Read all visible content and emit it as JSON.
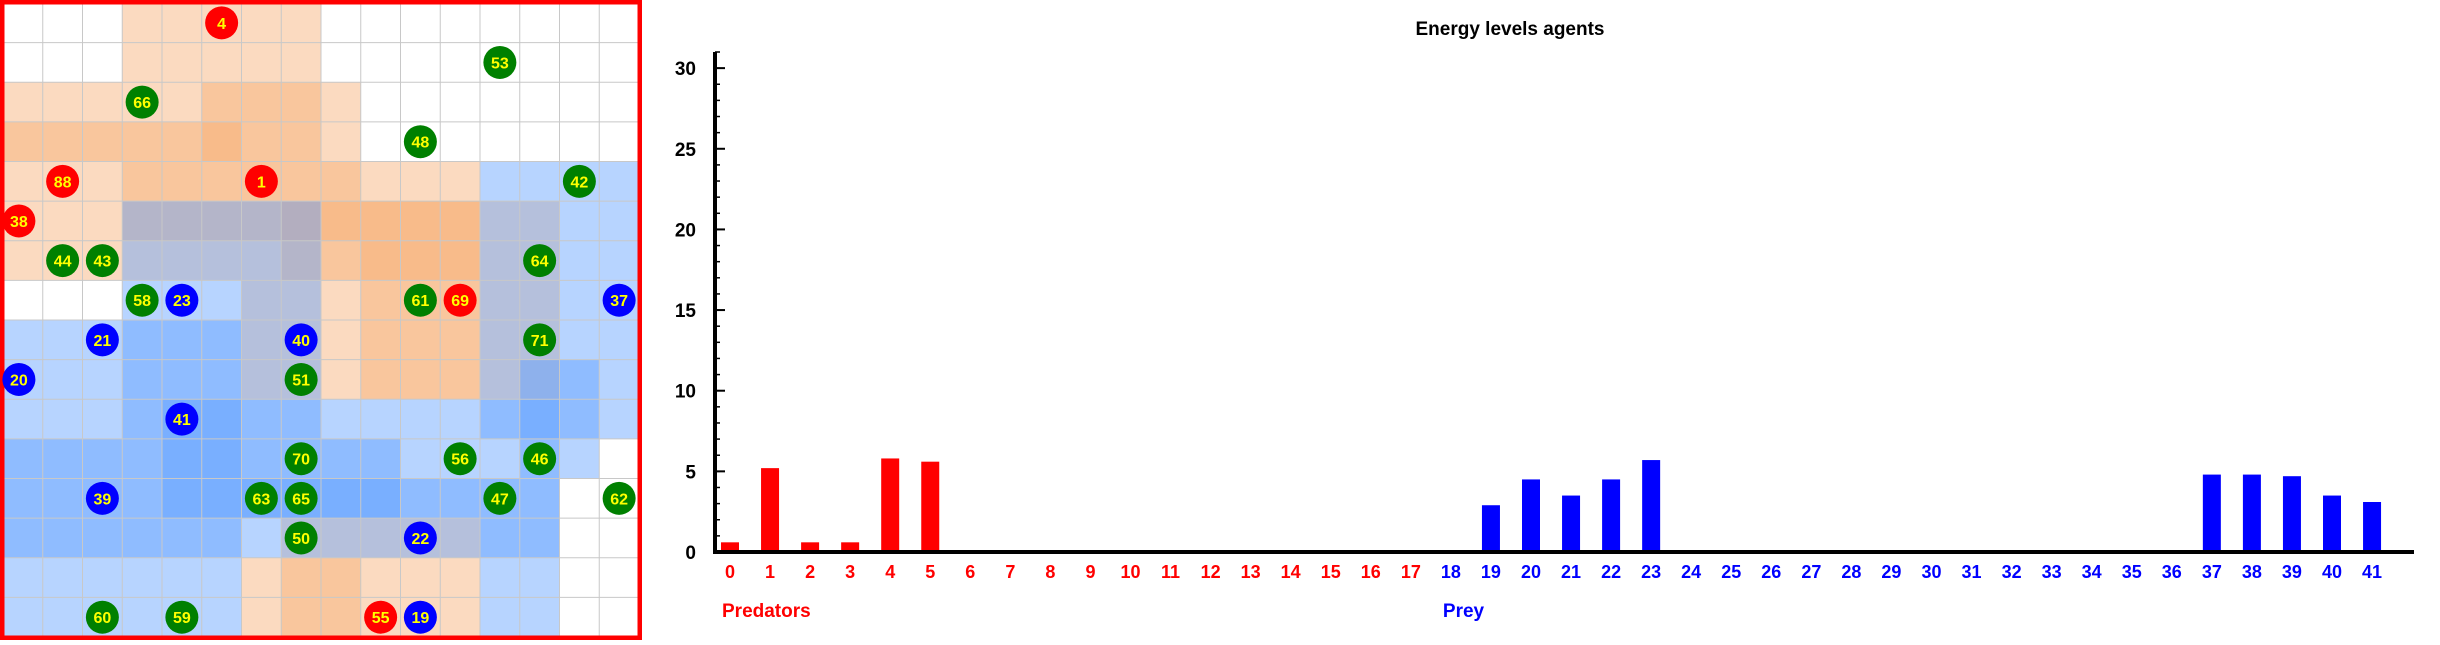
{
  "grid": {
    "cols": 16,
    "rows": 16,
    "colors": {
      "border": "#ff0000",
      "gridline": "#c8c8c8",
      "predator_zone": "#f7ae74",
      "prey_zone": "#5fa0ff",
      "predator_agent": "#ff0000",
      "prey_agent": "#0000ff",
      "plant_agent": "#008000",
      "agent_label": "#ffff00"
    },
    "zones": [
      {
        "kind": "predator",
        "c0": 3,
        "c1": 4,
        "r0": 0,
        "r1": 1
      },
      {
        "kind": "predator",
        "c0": 5,
        "c1": 7,
        "r0": 0,
        "r1": 3
      },
      {
        "kind": "predator",
        "c0": 3,
        "c1": 8,
        "r0": 2,
        "r1": 5
      },
      {
        "kind": "predator",
        "c0": 0,
        "c1": 2,
        "r0": 2,
        "r1": 3
      },
      {
        "kind": "predator",
        "c0": 0,
        "c1": 5,
        "r0": 3,
        "r1": 6
      },
      {
        "kind": "predator",
        "c0": 6,
        "c1": 11,
        "r0": 4,
        "r1": 9
      },
      {
        "kind": "predator",
        "c0": 7,
        "c1": 11,
        "r0": 5,
        "r1": 6
      },
      {
        "kind": "predator",
        "c0": 9,
        "c1": 13,
        "r0": 5,
        "r1": 9
      },
      {
        "kind": "predator",
        "c0": 7,
        "c1": 11,
        "r0": 13,
        "r1": 15
      },
      {
        "kind": "predator",
        "c0": 6,
        "c1": 8,
        "r0": 14,
        "r1": 15
      },
      {
        "kind": "prey",
        "c0": 12,
        "c1": 15,
        "r0": 4,
        "r1": 10
      },
      {
        "kind": "prey",
        "c0": 3,
        "c1": 7,
        "r0": 5,
        "r1": 10
      },
      {
        "kind": "prey",
        "c0": 0,
        "c1": 5,
        "r0": 8,
        "r1": 11
      },
      {
        "kind": "prey",
        "c0": 0,
        "c1": 9,
        "r0": 11,
        "r1": 12
      },
      {
        "kind": "prey",
        "c0": 4,
        "c1": 13,
        "r0": 10,
        "r1": 12
      },
      {
        "kind": "prey",
        "c0": 0,
        "c1": 13,
        "r0": 12,
        "r1": 13
      },
      {
        "kind": "prey",
        "c0": 0,
        "c1": 5,
        "r0": 13,
        "r1": 15
      },
      {
        "kind": "prey",
        "c0": 12,
        "c1": 13,
        "r0": 13,
        "r1": 15
      },
      {
        "kind": "prey",
        "c0": 13,
        "c1": 14,
        "r0": 9,
        "r1": 11
      }
    ],
    "agents": [
      {
        "id": "4",
        "kind": "predator",
        "col": 5.5,
        "row": 0.5
      },
      {
        "id": "53",
        "kind": "plant",
        "col": 12.5,
        "row": 1.5
      },
      {
        "id": "66",
        "kind": "plant",
        "col": 3.5,
        "row": 2.5
      },
      {
        "id": "48",
        "kind": "plant",
        "col": 10.5,
        "row": 3.5
      },
      {
        "id": "88",
        "kind": "predator",
        "col": 1.5,
        "row": 4.5
      },
      {
        "id": "1",
        "kind": "predator",
        "col": 6.5,
        "row": 4.5
      },
      {
        "id": "42",
        "kind": "plant",
        "col": 14.5,
        "row": 4.5
      },
      {
        "id": "38",
        "kind": "predator",
        "col": 0.4,
        "row": 5.5
      },
      {
        "id": "44",
        "kind": "plant",
        "col": 1.5,
        "row": 6.5
      },
      {
        "id": "43",
        "kind": "plant",
        "col": 2.5,
        "row": 6.5
      },
      {
        "id": "64",
        "kind": "plant",
        "col": 13.5,
        "row": 6.5
      },
      {
        "id": "58",
        "kind": "plant",
        "col": 3.5,
        "row": 7.5
      },
      {
        "id": "23",
        "kind": "prey",
        "col": 4.5,
        "row": 7.5
      },
      {
        "id": "61",
        "kind": "plant",
        "col": 10.5,
        "row": 7.5
      },
      {
        "id": "69",
        "kind": "predator",
        "col": 11.5,
        "row": 7.5
      },
      {
        "id": "37",
        "kind": "prey",
        "col": 15.5,
        "row": 7.5
      },
      {
        "id": "21",
        "kind": "prey",
        "col": 2.5,
        "row": 8.5
      },
      {
        "id": "40",
        "kind": "prey",
        "col": 7.5,
        "row": 8.5
      },
      {
        "id": "71",
        "kind": "plant",
        "col": 13.5,
        "row": 8.5
      },
      {
        "id": "20",
        "kind": "prey",
        "col": 0.4,
        "row": 9.5
      },
      {
        "id": "51",
        "kind": "plant",
        "col": 7.5,
        "row": 9.5
      },
      {
        "id": "41",
        "kind": "prey",
        "col": 4.5,
        "row": 10.5
      },
      {
        "id": "70",
        "kind": "plant",
        "col": 7.5,
        "row": 11.5
      },
      {
        "id": "56",
        "kind": "plant",
        "col": 11.5,
        "row": 11.5
      },
      {
        "id": "46",
        "kind": "plant",
        "col": 13.5,
        "row": 11.5
      },
      {
        "id": "39",
        "kind": "prey",
        "col": 2.5,
        "row": 12.5
      },
      {
        "id": "63",
        "kind": "plant",
        "col": 6.5,
        "row": 12.5
      },
      {
        "id": "65",
        "kind": "plant",
        "col": 7.5,
        "row": 12.5
      },
      {
        "id": "47",
        "kind": "plant",
        "col": 12.5,
        "row": 12.5
      },
      {
        "id": "62",
        "kind": "plant",
        "col": 15.5,
        "row": 12.5
      },
      {
        "id": "50",
        "kind": "plant",
        "col": 7.5,
        "row": 13.5
      },
      {
        "id": "22",
        "kind": "prey",
        "col": 10.5,
        "row": 13.5
      },
      {
        "id": "60",
        "kind": "plant",
        "col": 2.5,
        "row": 15.5
      },
      {
        "id": "59",
        "kind": "plant",
        "col": 4.5,
        "row": 15.5
      },
      {
        "id": "55",
        "kind": "predator",
        "col": 9.5,
        "row": 15.5
      },
      {
        "id": "19",
        "kind": "prey",
        "col": 10.5,
        "row": 15.5
      }
    ]
  },
  "chart_data": {
    "type": "bar",
    "title": "Energy levels agents",
    "ylim": [
      0,
      31
    ],
    "yticks": [
      0,
      5,
      10,
      15,
      20,
      25,
      30
    ],
    "grid": false,
    "categories": [
      "0",
      "1",
      "2",
      "3",
      "4",
      "5",
      "6",
      "7",
      "8",
      "9",
      "10",
      "11",
      "12",
      "13",
      "14",
      "15",
      "16",
      "17",
      "18",
      "19",
      "20",
      "21",
      "22",
      "23",
      "24",
      "25",
      "26",
      "27",
      "28",
      "29",
      "30",
      "31",
      "32",
      "33",
      "34",
      "35",
      "36",
      "37",
      "38",
      "39",
      "40",
      "41"
    ],
    "groups": [
      {
        "name": "Predators",
        "from": 0,
        "to": 17,
        "color": "#ff0000"
      },
      {
        "name": "Prey",
        "from": 18,
        "to": 41,
        "color": "#0000ff"
      }
    ],
    "values": [
      0.6,
      5.2,
      0.6,
      0.6,
      5.8,
      5.6,
      0,
      0,
      0,
      0,
      0,
      0,
      0,
      0,
      0,
      0,
      0,
      0,
      0,
      2.9,
      4.5,
      3.5,
      4.5,
      5.7,
      0,
      0,
      0,
      0,
      0,
      0,
      0,
      0,
      0,
      0,
      0,
      0,
      0,
      4.8,
      4.8,
      4.7,
      3.5,
      3.1
    ]
  }
}
